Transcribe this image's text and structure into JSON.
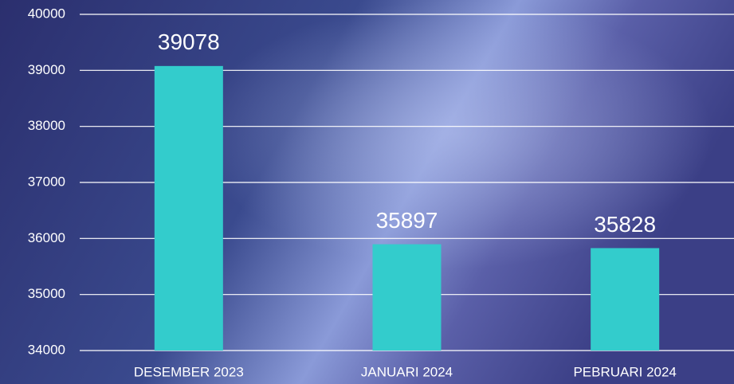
{
  "chart_data": {
    "type": "bar",
    "categories": [
      "DESEMBER 2023",
      "JANUARI 2024",
      "PEBRUARI 2024"
    ],
    "values": [
      39078,
      35897,
      35828
    ],
    "color": "#33cccc",
    "ylim": [
      34000,
      40000
    ],
    "yticks": [
      34000,
      35000,
      36000,
      37000,
      38000,
      39000,
      40000
    ],
    "grid": true
  }
}
